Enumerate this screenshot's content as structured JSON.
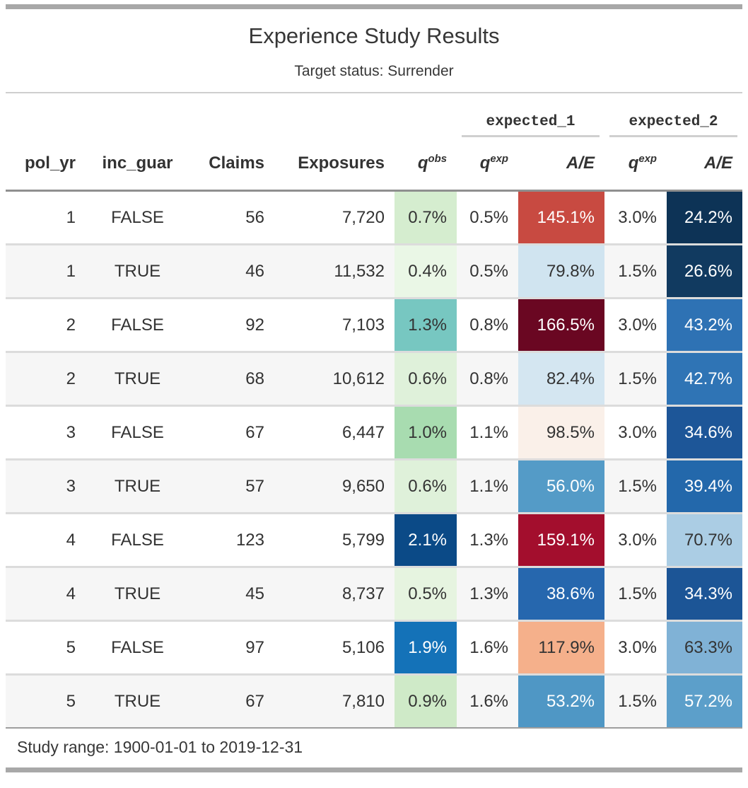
{
  "header": {
    "title": "Experience Study Results",
    "subtitle": "Target status: Surrender"
  },
  "spanners": [
    {
      "label": "expected_1"
    },
    {
      "label": "expected_2"
    }
  ],
  "columns": [
    {
      "id": "pol_yr",
      "label": "pol_yr",
      "sup": "",
      "italic": false,
      "align": "right"
    },
    {
      "id": "inc_guar",
      "label": "inc_guar",
      "sup": "",
      "italic": false,
      "align": "center"
    },
    {
      "id": "claims",
      "label": "Claims",
      "sup": "",
      "italic": false,
      "align": "right"
    },
    {
      "id": "exposures",
      "label": "Exposures",
      "sup": "",
      "italic": false,
      "align": "right"
    },
    {
      "id": "q_obs",
      "label": "q",
      "sup": "obs",
      "italic": true,
      "align": "right"
    },
    {
      "id": "q_exp_1",
      "label": "q",
      "sup": "exp",
      "italic": true,
      "align": "right"
    },
    {
      "id": "ae_1",
      "label": "A/E",
      "sup": "",
      "italic": true,
      "align": "right"
    },
    {
      "id": "q_exp_2",
      "label": "q",
      "sup": "exp",
      "italic": true,
      "align": "right"
    },
    {
      "id": "ae_2",
      "label": "A/E",
      "sup": "",
      "italic": true,
      "align": "right"
    }
  ],
  "rows": [
    {
      "pol_yr": "1",
      "inc_guar": "FALSE",
      "claims": "56",
      "exposures": "7,720",
      "q_obs": {
        "text": "0.7%",
        "bg": "#d5edcf",
        "fg": "#333333"
      },
      "q_exp_1": "0.5%",
      "ae_1": {
        "text": "145.1%",
        "bg": "#c84a41",
        "fg": "#ffffff"
      },
      "q_exp_2": "3.0%",
      "ae_2": {
        "text": "24.2%",
        "bg": "#0d3356",
        "fg": "#ffffff"
      }
    },
    {
      "pol_yr": "1",
      "inc_guar": "TRUE",
      "claims": "46",
      "exposures": "11,532",
      "q_obs": {
        "text": "0.4%",
        "bg": "#eaf7e6",
        "fg": "#333333"
      },
      "q_exp_1": "0.5%",
      "ae_1": {
        "text": "79.8%",
        "bg": "#d0e4f0",
        "fg": "#333333"
      },
      "q_exp_2": "1.5%",
      "ae_2": {
        "text": "26.6%",
        "bg": "#113a60",
        "fg": "#ffffff"
      }
    },
    {
      "pol_yr": "2",
      "inc_guar": "FALSE",
      "claims": "92",
      "exposures": "7,103",
      "q_obs": {
        "text": "1.3%",
        "bg": "#77c7c1",
        "fg": "#333333"
      },
      "q_exp_1": "0.8%",
      "ae_1": {
        "text": "166.5%",
        "bg": "#6a0722",
        "fg": "#ffffff"
      },
      "q_exp_2": "3.0%",
      "ae_2": {
        "text": "43.2%",
        "bg": "#2e72b4",
        "fg": "#ffffff"
      }
    },
    {
      "pol_yr": "2",
      "inc_guar": "TRUE",
      "claims": "68",
      "exposures": "10,612",
      "q_obs": {
        "text": "0.6%",
        "bg": "#dff1da",
        "fg": "#333333"
      },
      "q_exp_1": "0.8%",
      "ae_1": {
        "text": "82.4%",
        "bg": "#d4e6f1",
        "fg": "#333333"
      },
      "q_exp_2": "1.5%",
      "ae_2": {
        "text": "42.7%",
        "bg": "#2f74b5",
        "fg": "#ffffff"
      }
    },
    {
      "pol_yr": "3",
      "inc_guar": "FALSE",
      "claims": "67",
      "exposures": "6,447",
      "q_obs": {
        "text": "1.0%",
        "bg": "#a8dcb0",
        "fg": "#333333"
      },
      "q_exp_1": "1.1%",
      "ae_1": {
        "text": "98.5%",
        "bg": "#faf0e9",
        "fg": "#333333"
      },
      "q_exp_2": "3.0%",
      "ae_2": {
        "text": "34.6%",
        "bg": "#1d5698",
        "fg": "#ffffff"
      }
    },
    {
      "pol_yr": "3",
      "inc_guar": "TRUE",
      "claims": "57",
      "exposures": "9,650",
      "q_obs": {
        "text": "0.6%",
        "bg": "#dff1da",
        "fg": "#333333"
      },
      "q_exp_1": "1.1%",
      "ae_1": {
        "text": "56.0%",
        "bg": "#549bc7",
        "fg": "#ffffff"
      },
      "q_exp_2": "1.5%",
      "ae_2": {
        "text": "39.4%",
        "bg": "#2368ab",
        "fg": "#ffffff"
      }
    },
    {
      "pol_yr": "4",
      "inc_guar": "FALSE",
      "claims": "123",
      "exposures": "5,799",
      "q_obs": {
        "text": "2.1%",
        "bg": "#0b4a87",
        "fg": "#ffffff"
      },
      "q_exp_1": "1.3%",
      "ae_1": {
        "text": "159.1%",
        "bg": "#a30e2d",
        "fg": "#ffffff"
      },
      "q_exp_2": "3.0%",
      "ae_2": {
        "text": "70.7%",
        "bg": "#abcde4",
        "fg": "#333333"
      }
    },
    {
      "pol_yr": "4",
      "inc_guar": "TRUE",
      "claims": "45",
      "exposures": "8,737",
      "q_obs": {
        "text": "0.5%",
        "bg": "#e6f4e0",
        "fg": "#333333"
      },
      "q_exp_1": "1.3%",
      "ae_1": {
        "text": "38.6%",
        "bg": "#2667ae",
        "fg": "#ffffff"
      },
      "q_exp_2": "1.5%",
      "ae_2": {
        "text": "34.3%",
        "bg": "#1c5596",
        "fg": "#ffffff"
      }
    },
    {
      "pol_yr": "5",
      "inc_guar": "FALSE",
      "claims": "97",
      "exposures": "5,106",
      "q_obs": {
        "text": "1.9%",
        "bg": "#1472b8",
        "fg": "#ffffff"
      },
      "q_exp_1": "1.6%",
      "ae_1": {
        "text": "117.9%",
        "bg": "#f5b08b",
        "fg": "#333333"
      },
      "q_exp_2": "3.0%",
      "ae_2": {
        "text": "63.3%",
        "bg": "#80b2d6",
        "fg": "#333333"
      }
    },
    {
      "pol_yr": "5",
      "inc_guar": "TRUE",
      "claims": "67",
      "exposures": "7,810",
      "q_obs": {
        "text": "0.9%",
        "bg": "#cfeac8",
        "fg": "#333333"
      },
      "q_exp_1": "1.6%",
      "ae_1": {
        "text": "53.2%",
        "bg": "#4f97c5",
        "fg": "#ffffff"
      },
      "q_exp_2": "1.5%",
      "ae_2": {
        "text": "57.2%",
        "bg": "#5c9fca",
        "fg": "#ffffff"
      }
    }
  ],
  "footer": {
    "note": "Study range: 1900-01-01 to 2019-12-31"
  },
  "colors": {
    "stripe": "#f6f6f6",
    "text": "#333333",
    "bar": "#a8a8a8"
  },
  "chart_data": {
    "type": "table",
    "title": "Experience Study Results",
    "subtitle": "Target status: Surrender",
    "spanners": [
      "expected_1",
      "expected_2"
    ],
    "columns": [
      "pol_yr",
      "inc_guar",
      "Claims",
      "Exposures",
      "q_obs",
      "q_exp (expected_1)",
      "A/E (expected_1)",
      "q_exp (expected_2)",
      "A/E (expected_2)"
    ],
    "rows": [
      [
        1,
        "FALSE",
        56,
        7720,
        "0.7%",
        "0.5%",
        "145.1%",
        "3.0%",
        "24.2%"
      ],
      [
        1,
        "TRUE",
        46,
        11532,
        "0.4%",
        "0.5%",
        "79.8%",
        "1.5%",
        "26.6%"
      ],
      [
        2,
        "FALSE",
        92,
        7103,
        "1.3%",
        "0.8%",
        "166.5%",
        "3.0%",
        "43.2%"
      ],
      [
        2,
        "TRUE",
        68,
        10612,
        "0.6%",
        "0.8%",
        "82.4%",
        "1.5%",
        "42.7%"
      ],
      [
        3,
        "FALSE",
        67,
        6447,
        "1.0%",
        "1.1%",
        "98.5%",
        "3.0%",
        "34.6%"
      ],
      [
        3,
        "TRUE",
        57,
        9650,
        "0.6%",
        "1.1%",
        "56.0%",
        "1.5%",
        "39.4%"
      ],
      [
        4,
        "FALSE",
        123,
        5799,
        "2.1%",
        "1.3%",
        "159.1%",
        "3.0%",
        "70.7%"
      ],
      [
        4,
        "TRUE",
        45,
        8737,
        "0.5%",
        "1.3%",
        "38.6%",
        "1.5%",
        "34.3%"
      ],
      [
        5,
        "FALSE",
        97,
        5106,
        "1.9%",
        "1.6%",
        "117.9%",
        "3.0%",
        "63.3%"
      ],
      [
        5,
        "TRUE",
        67,
        7810,
        "0.9%",
        "1.6%",
        "53.2%",
        "1.5%",
        "57.2%"
      ]
    ],
    "source_note": "Study range: 1900-01-01 to 2019-12-31",
    "notes": "q_obs column heat-shaded green-to-blue; A/E columns heat-shaded with red-blue diverging palette"
  }
}
